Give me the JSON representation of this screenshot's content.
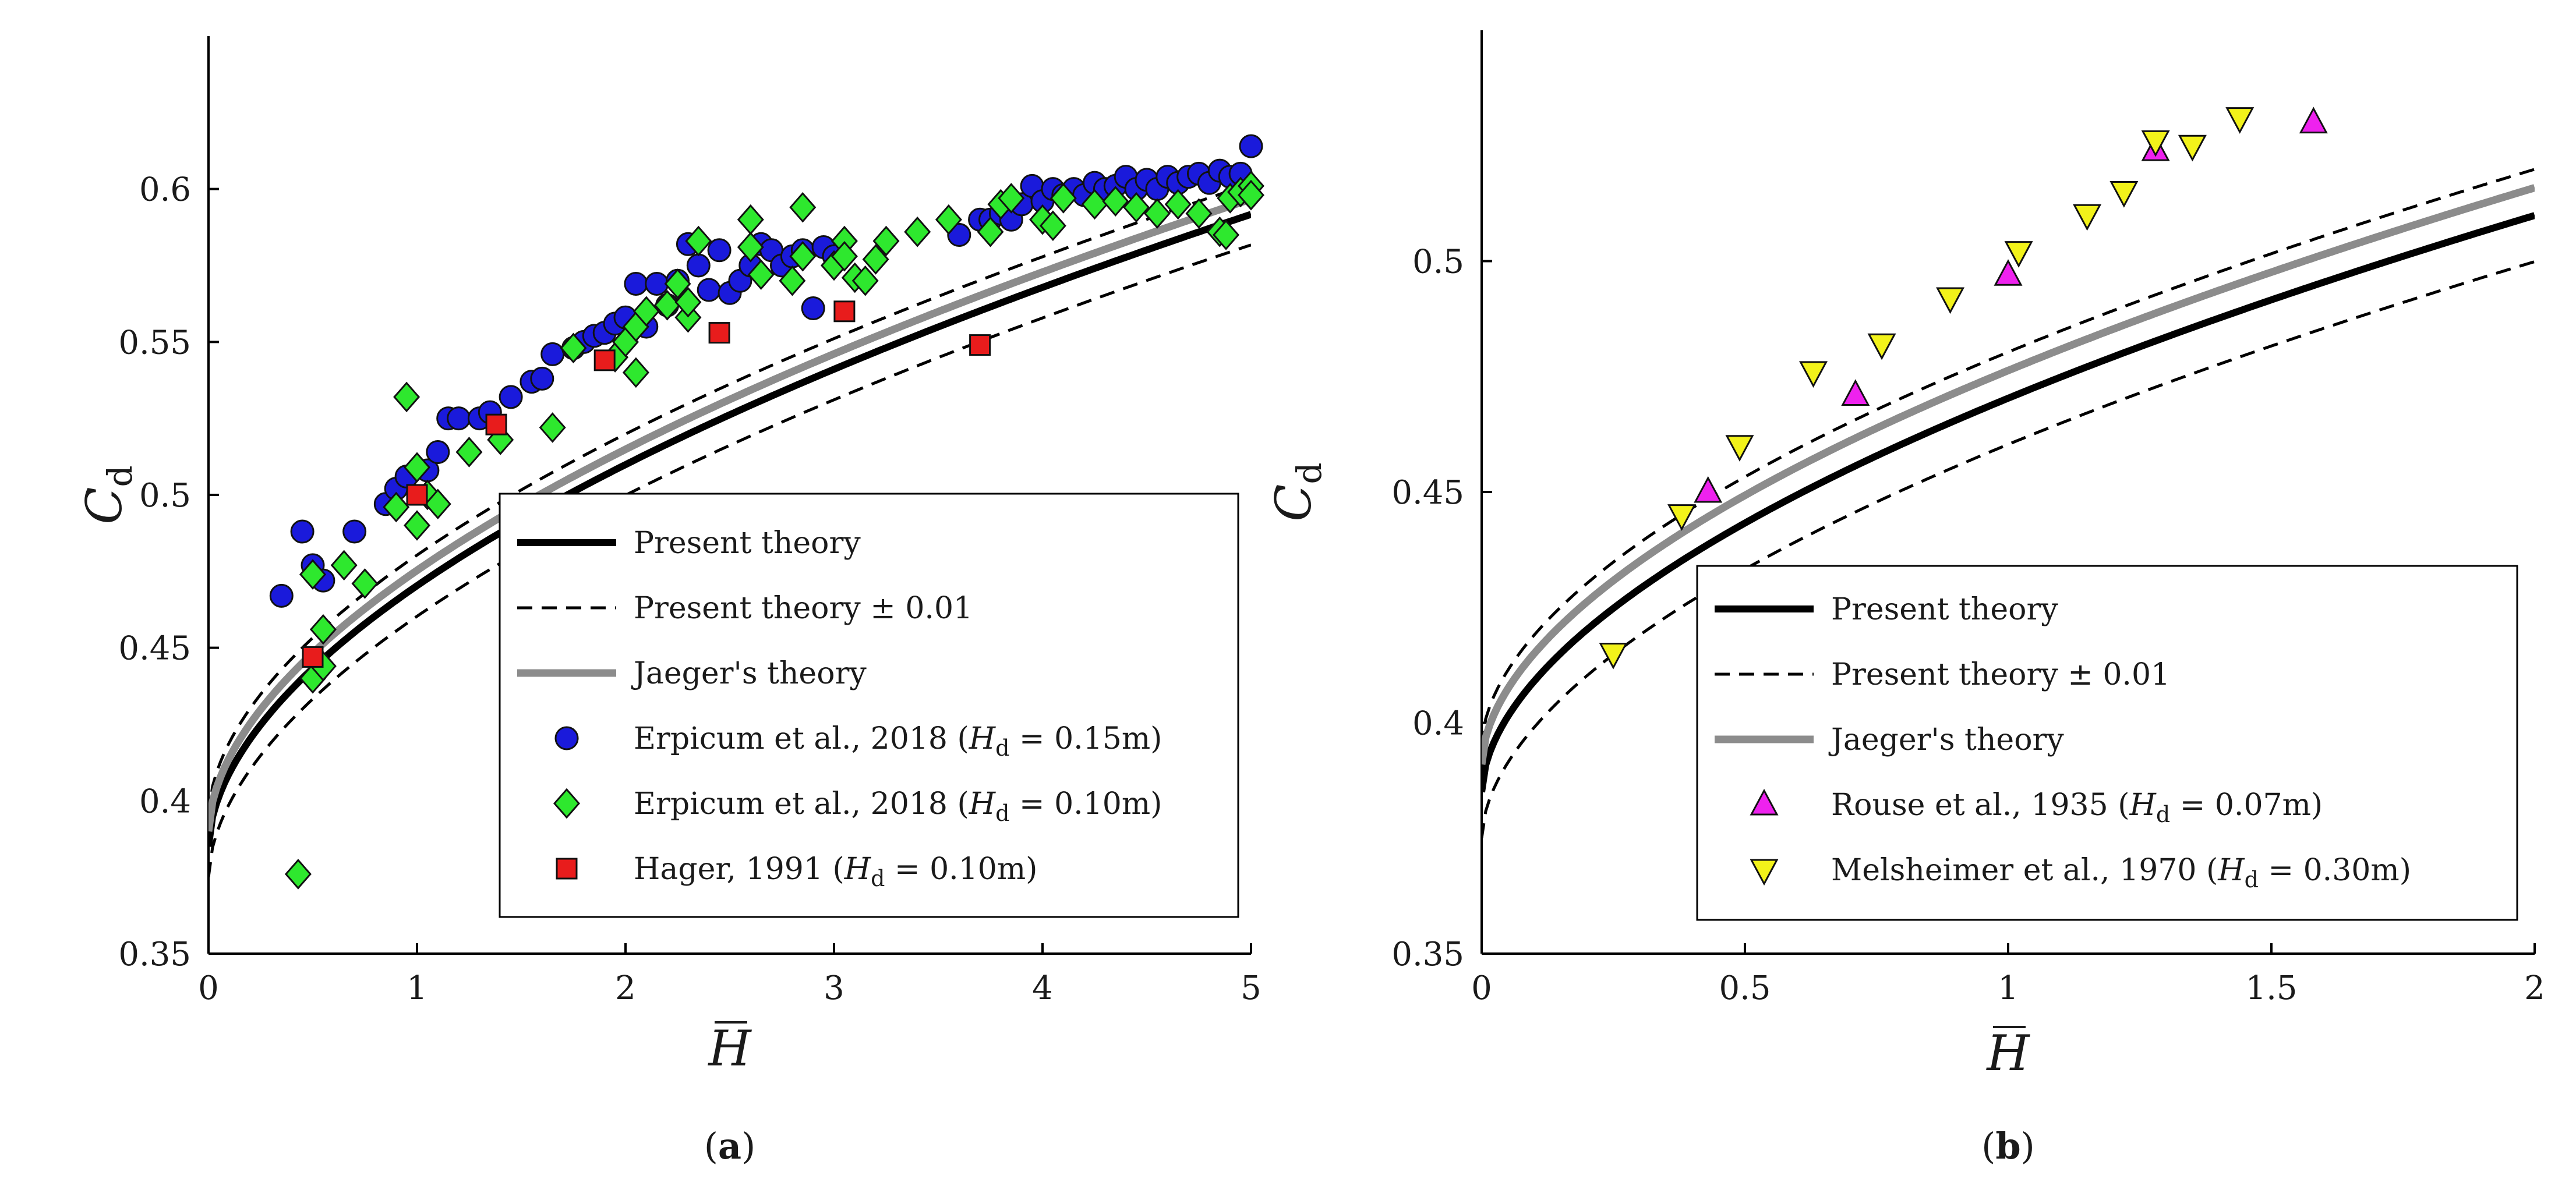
{
  "chart_data": [
    {
      "panel_label": "a",
      "type": "scatter",
      "title": "",
      "xlabel": "H",
      "ylabel": "C",
      "ylabel_sub": "d",
      "xlim": [
        0,
        5
      ],
      "ylim": [
        0.35,
        0.65
      ],
      "xticks": [
        "0",
        "1",
        "2",
        "3",
        "4",
        "5"
      ],
      "yticks": [
        "0.35",
        "0.4",
        "0.45",
        "0.5",
        "0.55",
        "0.6"
      ],
      "grid": false,
      "legend_position": "bottom-right",
      "curve_model": {
        "a": 0.385,
        "b": 0.0853,
        "p": 0.55,
        "note": "Cd = a + b*H^p"
      },
      "series": [
        {
          "name": "Present theory",
          "kind": "line",
          "style": "solid-black",
          "offset": 0,
          "label": [
            "Present theory"
          ]
        },
        {
          "name": "Present theory ± 0.01",
          "kind": "line",
          "style": "dashed-black",
          "offsets": [
            0.01,
            -0.01
          ],
          "label": [
            "Present theory ± 0.01"
          ]
        },
        {
          "name": "Jaeger's theory",
          "kind": "line",
          "style": "solid-gray",
          "offset": 0.005,
          "label": [
            "Jaeger's theory"
          ]
        },
        {
          "name": "Erpicum et al., 2018 (Hd = 0.15m)",
          "kind": "marker",
          "marker": "circle",
          "color": "#1a1adb",
          "label": [
            "Erpicum et al., 2018 (",
            "H",
            "d",
            " = 0.15m)"
          ],
          "points": [
            [
              0.35,
              0.467
            ],
            [
              0.45,
              0.488
            ],
            [
              0.5,
              0.477
            ],
            [
              0.55,
              0.472
            ],
            [
              0.7,
              0.488
            ],
            [
              0.85,
              0.497
            ],
            [
              0.9,
              0.502
            ],
            [
              0.95,
              0.506
            ],
            [
              1.05,
              0.508
            ],
            [
              1.1,
              0.514
            ],
            [
              1.15,
              0.525
            ],
            [
              1.2,
              0.525
            ],
            [
              1.3,
              0.525
            ],
            [
              1.35,
              0.527
            ],
            [
              1.45,
              0.532
            ],
            [
              1.55,
              0.537
            ],
            [
              1.6,
              0.538
            ],
            [
              1.65,
              0.546
            ],
            [
              1.75,
              0.548
            ],
            [
              1.8,
              0.55
            ],
            [
              1.85,
              0.552
            ],
            [
              1.9,
              0.553
            ],
            [
              1.95,
              0.556
            ],
            [
              2.0,
              0.558
            ],
            [
              2.05,
              0.569
            ],
            [
              2.1,
              0.555
            ],
            [
              2.15,
              0.569
            ],
            [
              2.2,
              0.562
            ],
            [
              2.25,
              0.57
            ],
            [
              2.3,
              0.582
            ],
            [
              2.35,
              0.575
            ],
            [
              2.4,
              0.567
            ],
            [
              2.45,
              0.58
            ],
            [
              2.5,
              0.566
            ],
            [
              2.55,
              0.57
            ],
            [
              2.6,
              0.575
            ],
            [
              2.65,
              0.582
            ],
            [
              2.7,
              0.58
            ],
            [
              2.75,
              0.575
            ],
            [
              2.8,
              0.578
            ],
            [
              2.85,
              0.58
            ],
            [
              2.9,
              0.561
            ],
            [
              2.95,
              0.581
            ],
            [
              3.0,
              0.578
            ],
            [
              3.6,
              0.585
            ],
            [
              3.7,
              0.59
            ],
            [
              3.75,
              0.59
            ],
            [
              3.8,
              0.592
            ],
            [
              3.85,
              0.59
            ],
            [
              3.9,
              0.595
            ],
            [
              3.95,
              0.601
            ],
            [
              4.0,
              0.596
            ],
            [
              4.05,
              0.6
            ],
            [
              4.1,
              0.598
            ],
            [
              4.15,
              0.6
            ],
            [
              4.2,
              0.598
            ],
            [
              4.25,
              0.602
            ],
            [
              4.3,
              0.6
            ],
            [
              4.35,
              0.601
            ],
            [
              4.4,
              0.604
            ],
            [
              4.45,
              0.6
            ],
            [
              4.5,
              0.603
            ],
            [
              4.55,
              0.6
            ],
            [
              4.6,
              0.604
            ],
            [
              4.65,
              0.602
            ],
            [
              4.7,
              0.604
            ],
            [
              4.75,
              0.605
            ],
            [
              4.8,
              0.602
            ],
            [
              4.85,
              0.606
            ],
            [
              4.9,
              0.604
            ],
            [
              4.95,
              0.605
            ],
            [
              5.0,
              0.614
            ]
          ]
        },
        {
          "name": "Erpicum et al., 2018 (Hd = 0.10m)",
          "kind": "marker",
          "marker": "diamond",
          "color": "#2ee82e",
          "label": [
            "Erpicum et al., 2018 (",
            "H",
            "d",
            " = 0.10m)"
          ],
          "points": [
            [
              0.43,
              0.376
            ],
            [
              0.5,
              0.44
            ],
            [
              0.55,
              0.444
            ],
            [
              0.55,
              0.456
            ],
            [
              0.5,
              0.474
            ],
            [
              0.65,
              0.477
            ],
            [
              0.75,
              0.471
            ],
            [
              0.9,
              0.496
            ],
            [
              0.95,
              0.532
            ],
            [
              1.0,
              0.509
            ],
            [
              1.0,
              0.49
            ],
            [
              1.05,
              0.5
            ],
            [
              1.1,
              0.497
            ],
            [
              1.25,
              0.514
            ],
            [
              1.4,
              0.518
            ],
            [
              1.65,
              0.522
            ],
            [
              1.75,
              0.548
            ],
            [
              1.95,
              0.545
            ],
            [
              2.0,
              0.55
            ],
            [
              2.05,
              0.54
            ],
            [
              2.05,
              0.555
            ],
            [
              2.1,
              0.56
            ],
            [
              2.2,
              0.562
            ],
            [
              2.25,
              0.569
            ],
            [
              2.3,
              0.558
            ],
            [
              2.3,
              0.563
            ],
            [
              2.35,
              0.583
            ],
            [
              2.6,
              0.59
            ],
            [
              2.6,
              0.581
            ],
            [
              2.65,
              0.572
            ],
            [
              2.8,
              0.57
            ],
            [
              2.85,
              0.594
            ],
            [
              2.85,
              0.578
            ],
            [
              3.0,
              0.575
            ],
            [
              3.05,
              0.583
            ],
            [
              3.05,
              0.578
            ],
            [
              3.1,
              0.571
            ],
            [
              3.15,
              0.57
            ],
            [
              3.2,
              0.577
            ],
            [
              3.25,
              0.583
            ],
            [
              3.4,
              0.586
            ],
            [
              3.55,
              0.59
            ],
            [
              3.75,
              0.586
            ],
            [
              3.8,
              0.595
            ],
            [
              3.85,
              0.597
            ],
            [
              4.0,
              0.59
            ],
            [
              4.05,
              0.588
            ],
            [
              4.1,
              0.597
            ],
            [
              4.25,
              0.595
            ],
            [
              4.35,
              0.596
            ],
            [
              4.45,
              0.594
            ],
            [
              4.55,
              0.592
            ],
            [
              4.65,
              0.595
            ],
            [
              4.75,
              0.592
            ],
            [
              4.85,
              0.586
            ],
            [
              4.88,
              0.585
            ],
            [
              4.9,
              0.597
            ],
            [
              4.95,
              0.599
            ],
            [
              5.0,
              0.601
            ],
            [
              5.0,
              0.598
            ]
          ]
        },
        {
          "name": "Hager, 1991 (Hd = 0.10m)",
          "kind": "marker",
          "marker": "square",
          "color": "#e81c1c",
          "label": [
            "Hager, 1991 (",
            "H",
            "d",
            " = 0.10m)"
          ],
          "points": [
            [
              0.5,
              0.447
            ],
            [
              1.0,
              0.5
            ],
            [
              1.38,
              0.523
            ],
            [
              1.9,
              0.544
            ],
            [
              2.45,
              0.553
            ],
            [
              3.05,
              0.56
            ],
            [
              3.7,
              0.549
            ]
          ]
        }
      ]
    },
    {
      "panel_label": "b",
      "type": "scatter",
      "title": "",
      "xlabel": "H",
      "ylabel": "C",
      "ylabel_sub": "d",
      "xlim": [
        0,
        2
      ],
      "ylim": [
        0.35,
        0.55
      ],
      "xticks": [
        "0",
        "0.5",
        "1",
        "1.5",
        "2"
      ],
      "yticks": [
        "0.35",
        "0.4",
        "0.45",
        "0.5"
      ],
      "grid": false,
      "legend_position": "bottom-right",
      "curve_model": {
        "a": 0.385,
        "b": 0.0853,
        "p": 0.55,
        "note": "Cd = a + b*H^p"
      },
      "series": [
        {
          "name": "Present theory",
          "kind": "line",
          "style": "solid-black",
          "offset": 0,
          "label": [
            "Present theory"
          ]
        },
        {
          "name": "Present theory ± 0.01",
          "kind": "line",
          "style": "dashed-black",
          "offsets": [
            0.01,
            -0.01
          ],
          "label": [
            "Present theory ± 0.01"
          ]
        },
        {
          "name": "Jaeger's theory",
          "kind": "line",
          "style": "solid-gray",
          "offset": 0.006,
          "label": [
            "Jaeger's theory"
          ]
        },
        {
          "name": "Rouse et al., 1935 (Hd = 0.07m)",
          "kind": "marker",
          "marker": "triangle-up",
          "color": "#ee22ee",
          "label": [
            "Rouse et al., 1935 (",
            "H",
            "d",
            " = 0.07m)"
          ],
          "points": [
            [
              0.43,
              0.45
            ],
            [
              0.71,
              0.471
            ],
            [
              1.0,
              0.497
            ],
            [
              1.28,
              0.524
            ],
            [
              1.58,
              0.53
            ]
          ]
        },
        {
          "name": "Melsheimer et al., 1970 (Hd = 0.30m)",
          "kind": "marker",
          "marker": "triangle-down",
          "color": "#f2f21a",
          "label": [
            "Melsheimer et al., 1970 (",
            "H",
            "d",
            " = 0.30m)"
          ],
          "points": [
            [
              0.25,
              0.415
            ],
            [
              0.38,
              0.445
            ],
            [
              0.49,
              0.46
            ],
            [
              0.63,
              0.476
            ],
            [
              0.76,
              0.482
            ],
            [
              0.89,
              0.492
            ],
            [
              1.02,
              0.502
            ],
            [
              1.15,
              0.51
            ],
            [
              1.22,
              0.515
            ],
            [
              1.28,
              0.526
            ],
            [
              1.35,
              0.525
            ],
            [
              1.44,
              0.531
            ]
          ]
        }
      ]
    }
  ]
}
